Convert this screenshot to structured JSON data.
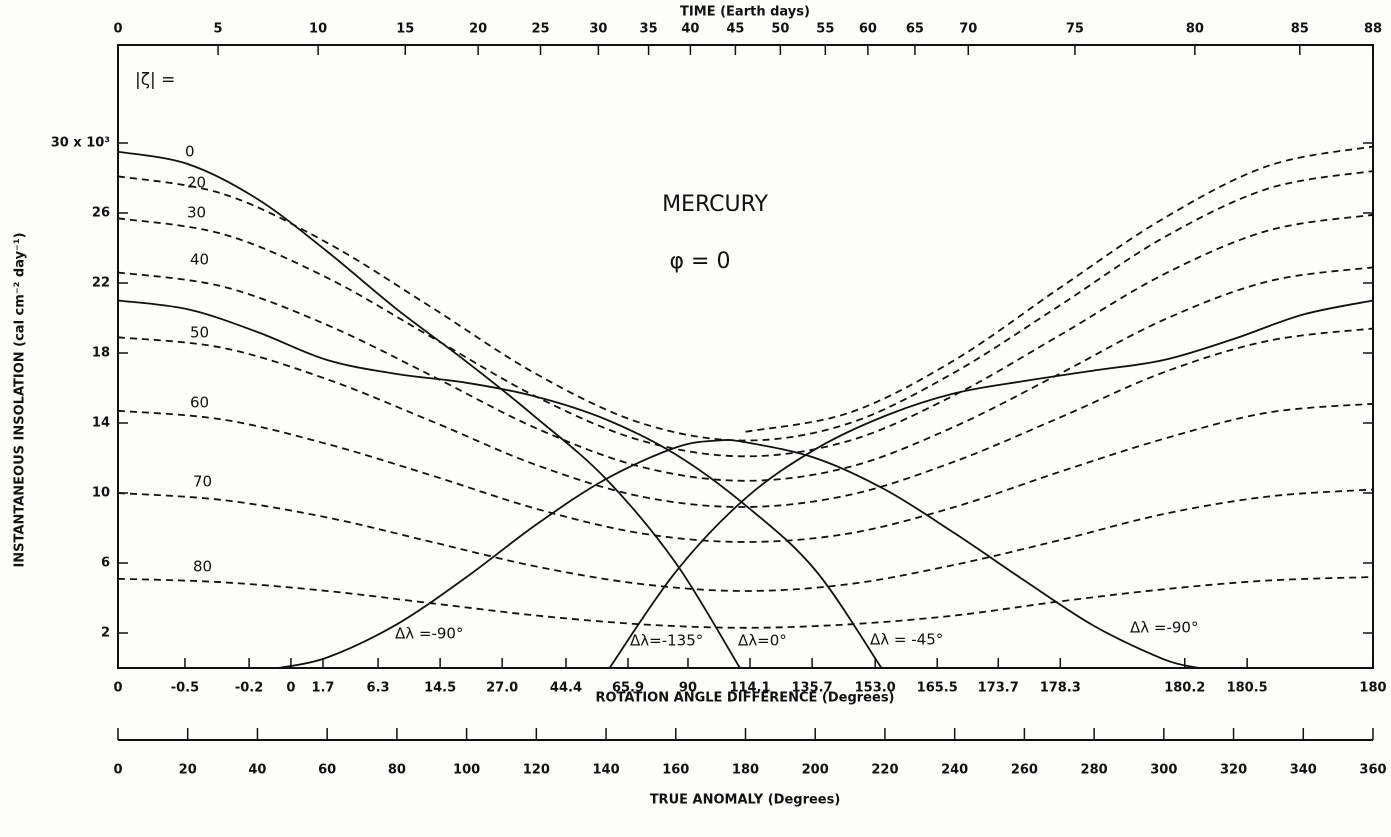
{
  "chart_data": {
    "type": "line",
    "title": "MERCURY",
    "subtitle": "φ = 0",
    "ylabel": "INSTANTANEOUS INSOLATION (cal cm⁻² day⁻¹)",
    "xlabel": "TRUE ANOMALY (Degrees)",
    "zeta_heading": "|ζ| =",
    "xlim": [
      0,
      360
    ],
    "xticks": [
      0,
      20,
      40,
      60,
      80,
      100,
      120,
      140,
      160,
      180,
      200,
      220,
      240,
      260,
      280,
      300,
      320,
      340,
      360
    ],
    "ylim": [
      0,
      35.6
    ],
    "yticks": [
      2,
      6,
      10,
      14,
      18,
      22,
      26,
      {
        "value": 30,
        "label": "30 x 10³"
      }
    ],
    "time_axis": {
      "label": "TIME (Earth days)",
      "ticks": [
        0,
        5,
        10,
        15,
        20,
        25,
        30,
        35,
        40,
        45,
        50,
        55,
        60,
        65,
        70,
        75,
        80,
        85,
        88
      ],
      "at_anomaly": [
        0,
        28.7,
        57.4,
        82.4,
        103.3,
        121.2,
        137.8,
        152.2,
        164.2,
        177.1,
        190.0,
        202.9,
        215.1,
        228.6,
        243.9,
        274.5,
        308.9,
        339.0,
        360
      ]
    },
    "rotation_axis": {
      "label": "ROTATION ANGLE DIFFERENCE  (Degrees)",
      "ticks": [
        0,
        -0.5,
        -0.2,
        0,
        1.7,
        6.3,
        14.5,
        {
          "value": 27,
          "label": "27.0"
        },
        44.4,
        65.9,
        90,
        114.1,
        135.7,
        {
          "value": 153,
          "label": "153.0"
        },
        165.5,
        173.7,
        178.3,
        180.2,
        180.5,
        180
      ],
      "at_anomaly": [
        0,
        19.2,
        37.6,
        49.6,
        58.8,
        74.6,
        92.4,
        110.2,
        128.5,
        146.3,
        163.5,
        181.3,
        199.1,
        217.2,
        235.0,
        252.5,
        270.3,
        306.0,
        323.9,
        360
      ]
    },
    "series": [
      {
        "name": "0",
        "style": "dashed",
        "color": "#111",
        "x": [
          180,
          210,
          240,
          270,
          300,
          330,
          360
        ],
        "values": [
          13.5,
          14.6,
          17.6,
          21.7,
          25.7,
          28.7,
          29.8
        ]
      },
      {
        "name": "20",
        "style": "dashed",
        "color": "#111",
        "x": [
          0,
          30,
          60,
          90,
          120,
          150,
          180,
          210,
          240,
          270,
          300,
          330,
          360
        ],
        "values": [
          28.1,
          27.1,
          24.3,
          20.6,
          16.8,
          14.0,
          13.0,
          14.0,
          16.9,
          20.7,
          24.6,
          27.4,
          28.4
        ]
      },
      {
        "name": "30",
        "style": "dashed",
        "color": "#111",
        "x": [
          0,
          30,
          60,
          90,
          120,
          150,
          180,
          210,
          240,
          270,
          300,
          330,
          360
        ],
        "values": [
          25.7,
          24.8,
          22.3,
          18.9,
          15.5,
          13.0,
          12.1,
          13.0,
          15.6,
          19.0,
          22.5,
          25.0,
          25.9
        ]
      },
      {
        "name": "40",
        "style": "dashed",
        "color": "#111",
        "x": [
          0,
          30,
          60,
          90,
          120,
          150,
          180,
          210,
          240,
          270,
          300,
          330,
          360
        ],
        "values": [
          22.6,
          21.8,
          19.6,
          16.7,
          13.7,
          11.5,
          10.7,
          11.5,
          13.8,
          16.8,
          19.9,
          22.1,
          22.9
        ]
      },
      {
        "name": "50",
        "style": "dashed",
        "color": "#111",
        "x": [
          0,
          30,
          60,
          90,
          120,
          150,
          180,
          210,
          240,
          270,
          300,
          330,
          360
        ],
        "values": [
          18.9,
          18.3,
          16.5,
          14.1,
          11.6,
          9.8,
          9.2,
          9.9,
          11.8,
          14.3,
          16.9,
          18.7,
          19.4
        ]
      },
      {
        "name": "60",
        "style": "dashed",
        "color": "#111",
        "x": [
          0,
          30,
          60,
          90,
          120,
          150,
          180,
          210,
          240,
          270,
          300,
          330,
          360
        ],
        "values": [
          14.7,
          14.2,
          12.8,
          11.0,
          9.1,
          7.7,
          7.2,
          7.7,
          9.2,
          11.2,
          13.1,
          14.6,
          15.1
        ]
      },
      {
        "name": "70",
        "style": "dashed",
        "color": "#111",
        "x": [
          0,
          30,
          60,
          90,
          120,
          150,
          180,
          210,
          240,
          270,
          300,
          330,
          360
        ],
        "values": [
          10.0,
          9.6,
          8.6,
          7.2,
          5.8,
          4.8,
          4.4,
          4.8,
          5.9,
          7.3,
          8.8,
          9.8,
          10.2
        ]
      },
      {
        "name": "80",
        "style": "dashed",
        "color": "#111",
        "x": [
          0,
          30,
          60,
          90,
          120,
          150,
          180,
          210,
          240,
          270,
          300,
          330,
          360
        ],
        "values": [
          5.1,
          4.9,
          4.4,
          3.7,
          3.0,
          2.5,
          2.3,
          2.5,
          3.0,
          3.8,
          4.5,
          5.0,
          5.2
        ]
      },
      {
        "name": "Δλ =-90°",
        "style": "solid",
        "color": "#111",
        "x": [
          46,
          60,
          80,
          100,
          120,
          140,
          160,
          172,
          180,
          200,
          220,
          240,
          260,
          280,
          300,
          310
        ],
        "values": [
          0,
          0.6,
          2.5,
          5.2,
          8.2,
          10.8,
          12.6,
          13,
          12.9,
          12,
          10.2,
          7.7,
          5.0,
          2.4,
          0.5,
          0
        ]
      },
      {
        "name": "Δλ=-135°",
        "style": "solid",
        "color": "#111",
        "x": [
          141,
          160,
          180,
          200,
          220,
          240,
          260,
          280,
          300,
          320,
          340,
          360
        ],
        "values": [
          0,
          5.5,
          9.7,
          12.5,
          14.4,
          15.7,
          16.4,
          17,
          17.6,
          18.8,
          20.2,
          21
        ]
      },
      {
        "name": "Δλ=0°",
        "style": "solid",
        "color": "#111",
        "x": [
          0,
          20,
          40,
          60,
          80,
          100,
          120,
          140,
          160,
          178.4
        ],
        "values": [
          29.5,
          28.8,
          26.8,
          23.8,
          20.5,
          17.5,
          14.3,
          10.8,
          6.0,
          0
        ]
      },
      {
        "name": "Δλ = -45°",
        "style": "solid",
        "color": "#111",
        "x": [
          0,
          20,
          40,
          60,
          80,
          100,
          120,
          140,
          160,
          180,
          200,
          219
        ],
        "values": [
          21,
          20.5,
          19.2,
          17.6,
          16.8,
          16.3,
          15.5,
          14.2,
          12.2,
          9.3,
          5.6,
          0
        ]
      }
    ]
  }
}
